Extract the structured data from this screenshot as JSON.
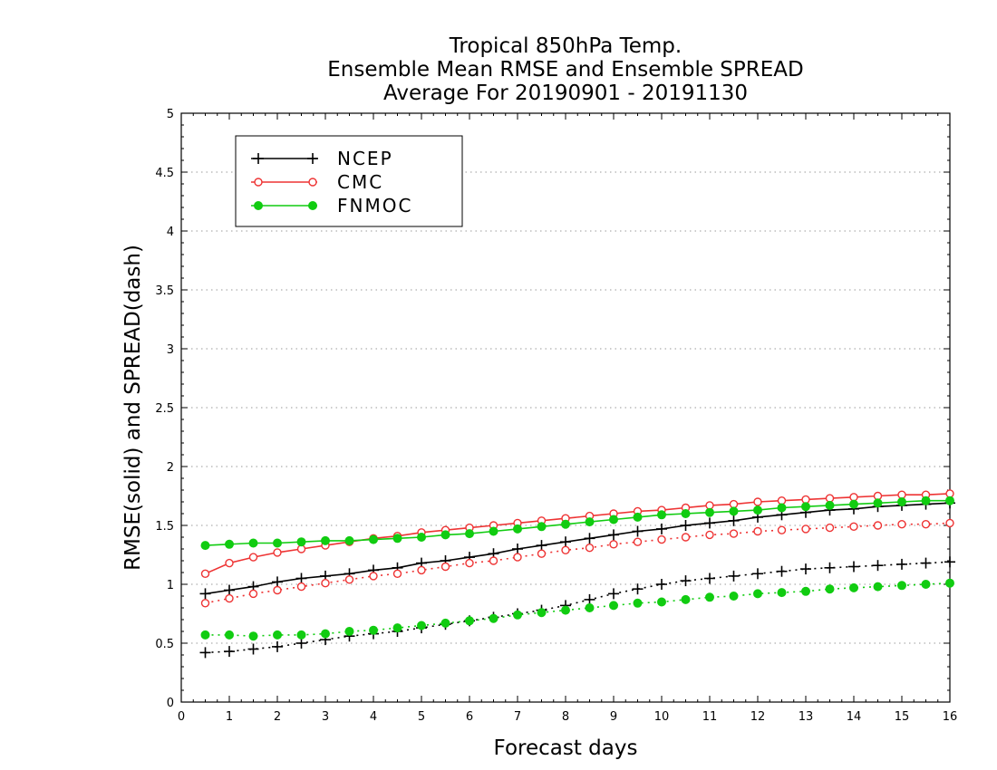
{
  "chart_data": {
    "type": "line",
    "title": [
      "Tropical 850hPa Temp.",
      "Ensemble Mean RMSE and Ensemble SPREAD",
      "Average For 20190901 - 20191130"
    ],
    "xlabel": "Forecast days",
    "ylabel": "RMSE(solid) and SPREAD(dash)",
    "xlim": [
      0,
      16
    ],
    "ylim": [
      0,
      5
    ],
    "xticks": [
      0,
      1,
      2,
      3,
      4,
      5,
      6,
      7,
      8,
      9,
      10,
      11,
      12,
      13,
      14,
      15,
      16
    ],
    "yticks": [
      0,
      0.5,
      1,
      1.5,
      2,
      2.5,
      3,
      3.5,
      4,
      4.5,
      5
    ],
    "ytick_labels": [
      "0",
      "0.5",
      "1",
      "1.5",
      "2",
      "2.5",
      "3",
      "3.5",
      "4",
      "4.5",
      "5"
    ],
    "grid": true,
    "legend_position": "top-left",
    "x": [
      0.5,
      1,
      1.5,
      2,
      2.5,
      3,
      3.5,
      4,
      4.5,
      5,
      5.5,
      6,
      6.5,
      7,
      7.5,
      8,
      8.5,
      9,
      9.5,
      10,
      10.5,
      11,
      11.5,
      12,
      12.5,
      13,
      13.5,
      14,
      14.5,
      15,
      15.5,
      16
    ],
    "series": [
      {
        "name": "NCEP",
        "color": "#000000",
        "marker": "plus",
        "rmse": [
          0.92,
          0.95,
          0.98,
          1.02,
          1.05,
          1.07,
          1.09,
          1.12,
          1.14,
          1.18,
          1.2,
          1.23,
          1.26,
          1.3,
          1.33,
          1.36,
          1.39,
          1.42,
          1.45,
          1.47,
          1.5,
          1.52,
          1.54,
          1.57,
          1.59,
          1.61,
          1.63,
          1.64,
          1.66,
          1.67,
          1.68,
          1.69
        ],
        "spread": [
          0.42,
          0.43,
          0.45,
          0.47,
          0.5,
          0.53,
          0.56,
          0.58,
          0.6,
          0.63,
          0.66,
          0.69,
          0.72,
          0.75,
          0.78,
          0.82,
          0.87,
          0.92,
          0.96,
          1.0,
          1.03,
          1.05,
          1.07,
          1.09,
          1.11,
          1.13,
          1.14,
          1.15,
          1.16,
          1.17,
          1.18,
          1.19
        ]
      },
      {
        "name": "CMC",
        "color": "#ee3333",
        "marker": "circle-open",
        "rmse": [
          1.09,
          1.18,
          1.23,
          1.27,
          1.3,
          1.33,
          1.36,
          1.39,
          1.41,
          1.44,
          1.46,
          1.48,
          1.5,
          1.52,
          1.54,
          1.56,
          1.58,
          1.6,
          1.62,
          1.63,
          1.65,
          1.67,
          1.68,
          1.7,
          1.71,
          1.72,
          1.73,
          1.74,
          1.75,
          1.76,
          1.76,
          1.77
        ],
        "spread": [
          0.84,
          0.88,
          0.92,
          0.95,
          0.98,
          1.01,
          1.04,
          1.07,
          1.09,
          1.12,
          1.15,
          1.18,
          1.2,
          1.23,
          1.26,
          1.29,
          1.31,
          1.34,
          1.36,
          1.38,
          1.4,
          1.42,
          1.43,
          1.45,
          1.46,
          1.47,
          1.48,
          1.49,
          1.5,
          1.51,
          1.51,
          1.52
        ]
      },
      {
        "name": "FNMOC",
        "color": "#11cc11",
        "marker": "dot",
        "rmse": [
          1.33,
          1.34,
          1.35,
          1.35,
          1.36,
          1.37,
          1.37,
          1.38,
          1.39,
          1.4,
          1.42,
          1.43,
          1.45,
          1.47,
          1.49,
          1.51,
          1.53,
          1.55,
          1.57,
          1.59,
          1.6,
          1.61,
          1.62,
          1.63,
          1.65,
          1.66,
          1.67,
          1.68,
          1.69,
          1.7,
          1.71,
          1.71
        ],
        "spread": [
          0.57,
          0.57,
          0.56,
          0.57,
          0.57,
          0.58,
          0.6,
          0.61,
          0.63,
          0.65,
          0.67,
          0.69,
          0.71,
          0.74,
          0.76,
          0.78,
          0.8,
          0.82,
          0.84,
          0.85,
          0.87,
          0.89,
          0.9,
          0.92,
          0.93,
          0.94,
          0.96,
          0.97,
          0.98,
          0.99,
          1.0,
          1.01
        ]
      }
    ]
  }
}
